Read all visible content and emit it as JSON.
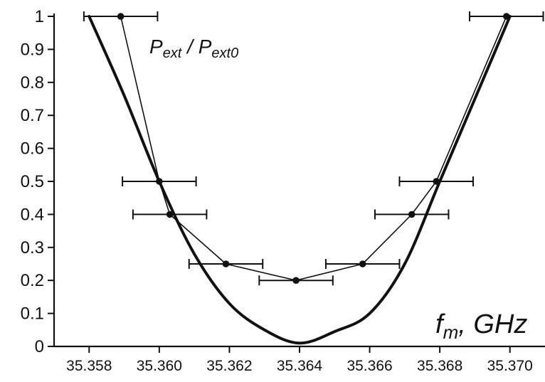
{
  "chart_data": {
    "type": "line",
    "title": "",
    "annotations": {
      "ylabel_main": "P",
      "ylabel_sub": "ext",
      "ylabel_sep": " / ",
      "ylabel_main2": "P",
      "ylabel_sub2": "ext0",
      "xlabel_main": "f",
      "xlabel_sub": "m",
      "xlabel_unit": ", GHz"
    },
    "xlim": [
      35.357,
      35.371
    ],
    "ylim": [
      0,
      1
    ],
    "xticks": [
      35.358,
      35.36,
      35.362,
      35.364,
      35.366,
      35.368,
      35.37
    ],
    "xtick_labels": [
      "35.358",
      "35.360",
      "35.362",
      "35.364",
      "35.366",
      "35.368",
      "35.370"
    ],
    "yticks": [
      0,
      0.1,
      0.2,
      0.3,
      0.4,
      0.5,
      0.6,
      0.7,
      0.8,
      0.9,
      1
    ],
    "ytick_labels": [
      "0",
      "0.1",
      "0.2",
      "0.3",
      "0.4",
      "0.5",
      "0.6",
      "0.7",
      "0.8",
      "0.9",
      "1"
    ],
    "grid": false,
    "series": [
      {
        "style": "thin line with points and horizontal error bars",
        "points": [
          {
            "x": 35.3589,
            "y": 1.0,
            "xerr": 1.05
          },
          {
            "x": 35.36,
            "y": 0.5,
            "xerr": 1.05
          },
          {
            "x": 35.3603,
            "y": 0.4,
            "xerr": 1.05
          },
          {
            "x": 35.3619,
            "y": 0.25,
            "xerr": 1.05
          },
          {
            "x": 35.3639,
            "y": 0.2,
            "xerr": 1.05
          },
          {
            "x": 35.3658,
            "y": 0.25,
            "xerr": 1.05
          },
          {
            "x": 35.3672,
            "y": 0.4,
            "xerr": 1.05
          },
          {
            "x": 35.3679,
            "y": 0.5,
            "xerr": 1.05
          },
          {
            "x": 35.3699,
            "y": 1.0,
            "xerr": 1.05
          }
        ]
      },
      {
        "style": "thick smooth line",
        "points": [
          {
            "x": 35.358,
            "y": 1.0
          },
          {
            "x": 35.359,
            "y": 0.76
          },
          {
            "x": 35.36,
            "y": 0.5
          },
          {
            "x": 35.361,
            "y": 0.28
          },
          {
            "x": 35.362,
            "y": 0.13
          },
          {
            "x": 35.363,
            "y": 0.05
          },
          {
            "x": 35.364,
            "y": 0.01
          },
          {
            "x": 35.365,
            "y": 0.045
          },
          {
            "x": 35.366,
            "y": 0.1
          },
          {
            "x": 35.367,
            "y": 0.25
          },
          {
            "x": 35.368,
            "y": 0.5
          },
          {
            "x": 35.369,
            "y": 0.75
          },
          {
            "x": 35.37,
            "y": 1.0
          }
        ]
      }
    ]
  }
}
